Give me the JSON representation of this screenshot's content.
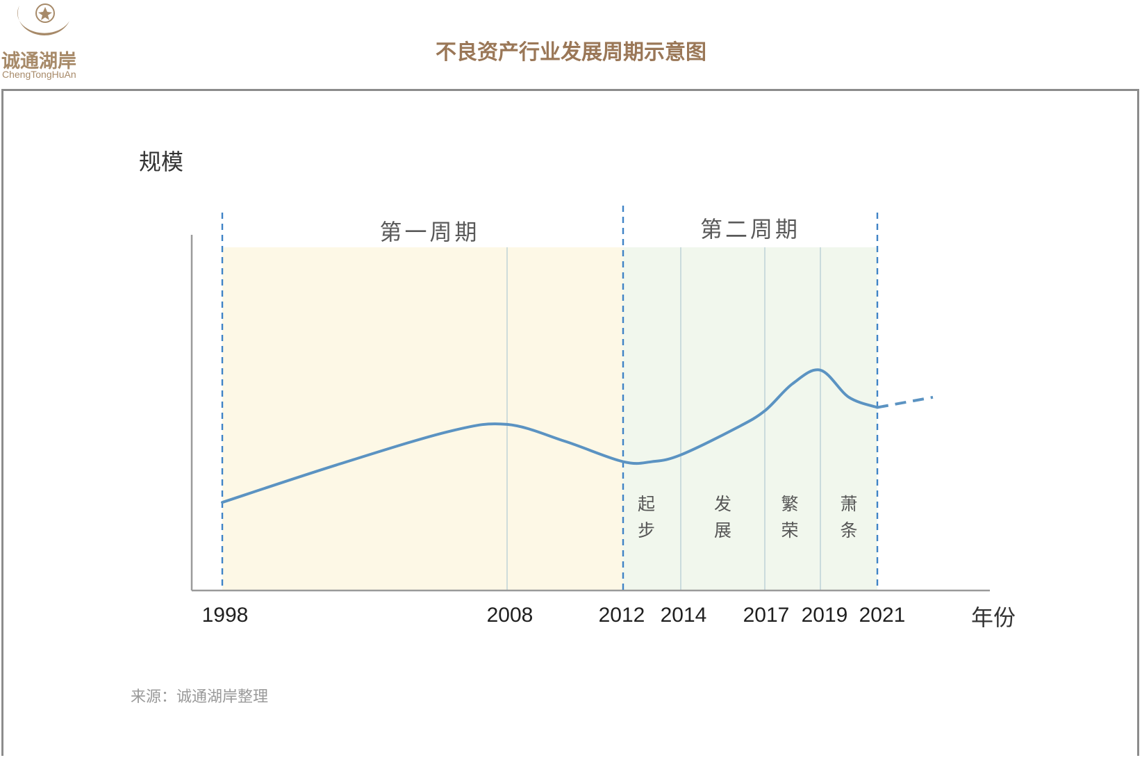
{
  "header": {
    "logo_cn": "诚通湖岸",
    "logo_en": "ChengTongHuAn",
    "title": "不良资产行业发展周期示意图"
  },
  "source": "来源：诚通湖岸整理",
  "colors": {
    "accent": "#9a7757",
    "curve": "#5b93c2",
    "cycle1_bg": "#fdf8e6",
    "cycle2_bg": "#f1f7ed",
    "divider": "#3f83c6"
  },
  "chart_data": {
    "type": "line",
    "ylabel": "规模",
    "xlabel": "年份",
    "x_ticks": [
      "1998",
      "2008",
      "2012",
      "2014",
      "2017",
      "2019",
      "2021"
    ],
    "cycles": [
      {
        "label": "第一周期",
        "start": "1998",
        "end": "2012"
      },
      {
        "label": "第二周期",
        "start": "2012",
        "end": "2021"
      }
    ],
    "phases": [
      {
        "label": "起步",
        "start": "2012",
        "end": "2014"
      },
      {
        "label": "发展",
        "start": "2014",
        "end": "2017"
      },
      {
        "label": "繁荣",
        "start": "2017",
        "end": "2019"
      },
      {
        "label": "萧条",
        "start": "2019",
        "end": "2021"
      }
    ],
    "series": [
      {
        "x": [
          1998,
          2002,
          2006,
          2008,
          2010,
          2012,
          2013,
          2014,
          2016,
          2017,
          2018,
          2019,
          2020,
          2021
        ],
        "y": [
          26,
          37,
          47,
          49,
          44,
          38,
          38,
          40,
          48,
          53,
          61,
          65,
          57,
          54
        ]
      }
    ],
    "projection": {
      "x": [
        2021,
        2023
      ],
      "y": [
        54,
        57
      ],
      "style": "dashed"
    },
    "ylim": [
      0,
      100
    ]
  }
}
